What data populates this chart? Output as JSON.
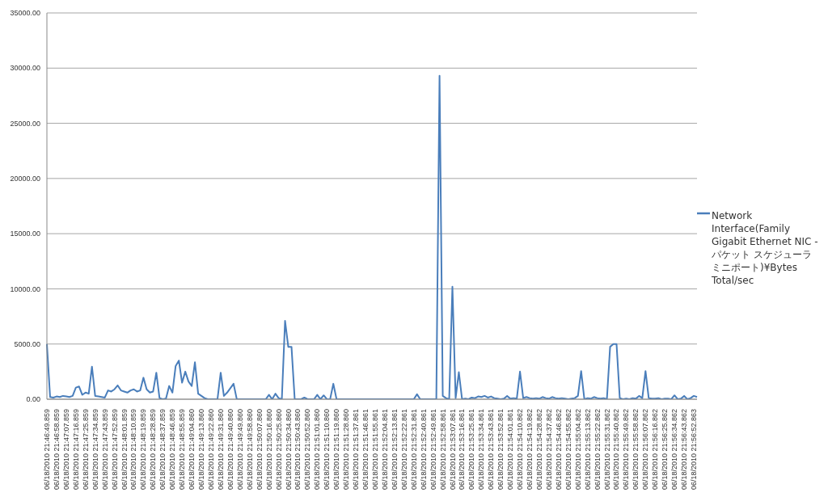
{
  "chart_data": {
    "type": "line",
    "categories": [
      "06/18/2010 21:46:49.859",
      null,
      null,
      "06/18/2010 21:46:58.859",
      null,
      null,
      "06/18/2010 21:47:07.859",
      null,
      null,
      "06/18/2010 21:47:16.859",
      null,
      null,
      "06/18/2010 21:47:25.859",
      null,
      null,
      "06/18/2010 21:47:34.859",
      null,
      null,
      "06/18/2010 21:47:43.859",
      null,
      null,
      "06/18/2010 21:47:52.859",
      null,
      null,
      "06/18/2010 21:48:01.859",
      null,
      null,
      "06/18/2010 21:48:10.859",
      null,
      null,
      "06/18/2010 21:48:19.859",
      null,
      null,
      "06/18/2010 21:48:28.859",
      null,
      null,
      "06/18/2010 21:48:37.859",
      null,
      null,
      "06/18/2010 21:48:46.859",
      null,
      null,
      "06/18/2010 21:48:55.859",
      null,
      null,
      "06/18/2010 21:49:04.860",
      null,
      null,
      "06/18/2010 21:49:13.860",
      null,
      null,
      "06/18/2010 21:49:22.860",
      null,
      null,
      "06/18/2010 21:49:31.860",
      null,
      null,
      "06/18/2010 21:49:40.860",
      null,
      null,
      "06/18/2010 21:49:49.860",
      null,
      null,
      "06/18/2010 21:49:58.860",
      null,
      null,
      "06/18/2010 21:50:07.860",
      null,
      null,
      "06/18/2010 21:50:16.860",
      null,
      null,
      "06/18/2010 21:50:25.860",
      null,
      null,
      "06/18/2010 21:50:34.860",
      null,
      null,
      "06/18/2010 21:50:43.860",
      null,
      null,
      "06/18/2010 21:50:52.860",
      null,
      null,
      "06/18/2010 21:51:01.860",
      null,
      null,
      "06/18/2010 21:51:10.860",
      null,
      null,
      "06/18/2010 21:51:19.860",
      null,
      null,
      "06/18/2010 21:51:28.860",
      null,
      null,
      "06/18/2010 21:51:37.861",
      null,
      null,
      "06/18/2010 21:51:46.861",
      null,
      null,
      "06/18/2010 21:51:55.861",
      null,
      null,
      "06/18/2010 21:52:04.861",
      null,
      null,
      "06/18/2010 21:52:13.861",
      null,
      null,
      "06/18/2010 21:52:22.861",
      null,
      null,
      "06/18/2010 21:52:31.861",
      null,
      null,
      "06/18/2010 21:52:40.861",
      null,
      null,
      "06/18/2010 21:52:49.861",
      null,
      null,
      "06/18/2010 21:52:58.861",
      null,
      null,
      "06/18/2010 21:53:07.861",
      null,
      null,
      "06/18/2010 21:53:16.861",
      null,
      null,
      "06/18/2010 21:53:25.861",
      null,
      null,
      "06/18/2010 21:53:34.861",
      null,
      null,
      "06/18/2010 21:53:43.861",
      null,
      null,
      "06/18/2010 21:53:52.861",
      null,
      null,
      "06/18/2010 21:54:01.861",
      null,
      null,
      "06/18/2010 21:54:10.862",
      null,
      null,
      "06/18/2010 21:54:19.862",
      null,
      null,
      "06/18/2010 21:54:28.862",
      null,
      null,
      "06/18/2010 21:54:37.862",
      null,
      null,
      "06/18/2010 21:54:46.862",
      null,
      null,
      "06/18/2010 21:54:55.862",
      null,
      null,
      "06/18/2010 21:55:04.862",
      null,
      null,
      "06/18/2010 21:55:13.862",
      null,
      null,
      "06/18/2010 21:55:22.862",
      null,
      null,
      "06/18/2010 21:55:31.862",
      null,
      null,
      "06/18/2010 21:55:40.862",
      null,
      null,
      "06/18/2010 21:55:49.862",
      null,
      null,
      "06/18/2010 21:55:58.862",
      null,
      null,
      "06/18/2010 21:56:07.862",
      null,
      null,
      "06/18/2010 21:56:16.862",
      null,
      null,
      "06/18/2010 21:56:25.862",
      null,
      null,
      "06/18/2010 21:56:34.862",
      null,
      null,
      "06/18/2010 21:56:43.862",
      null,
      null,
      "06/18/2010 21:56:52.863",
      null
    ],
    "series": [
      {
        "name": "Network Interface(Family Gigabit Ethernet NIC - パケット スケジューラミニポート)¥Bytes Total/sec",
        "color": "#4a7ebb",
        "values": [
          5000,
          200,
          150,
          250,
          200,
          300,
          250,
          200,
          300,
          1050,
          1150,
          400,
          600,
          500,
          2950,
          300,
          250,
          200,
          150,
          800,
          700,
          900,
          1250,
          800,
          700,
          600,
          800,
          900,
          700,
          800,
          1950,
          900,
          600,
          700,
          2400,
          100,
          0,
          50,
          1200,
          600,
          3000,
          3500,
          1500,
          2500,
          1600,
          1200,
          3350,
          500,
          300,
          100,
          0,
          0,
          0,
          0,
          2400,
          300,
          600,
          1000,
          1400,
          0,
          0,
          0,
          0,
          0,
          0,
          0,
          0,
          0,
          0,
          400,
          0,
          500,
          100,
          0,
          7100,
          4750,
          4750,
          0,
          0,
          0,
          150,
          0,
          0,
          0,
          400,
          0,
          350,
          0,
          0,
          1400,
          0,
          0,
          0,
          0,
          0,
          0,
          0,
          0,
          0,
          0,
          0,
          0,
          0,
          0,
          0,
          0,
          0,
          0,
          0,
          0,
          0,
          0,
          0,
          0,
          0,
          450,
          0,
          0,
          0,
          0,
          0,
          0,
          29300,
          300,
          100,
          0,
          10200,
          100,
          2450,
          0,
          50,
          0,
          150,
          100,
          250,
          200,
          300,
          150,
          250,
          100,
          50,
          0,
          50,
          300,
          50,
          100,
          50,
          2500,
          100,
          200,
          100,
          50,
          100,
          50,
          200,
          100,
          50,
          200,
          100,
          50,
          100,
          50,
          0,
          50,
          100,
          300,
          2550,
          0,
          100,
          50,
          200,
          100,
          50,
          100,
          0,
          4750,
          5000,
          5000,
          100,
          0,
          50,
          0,
          100,
          50,
          300,
          100,
          2550,
          100,
          50,
          50,
          100,
          0,
          50,
          50,
          0,
          350,
          0,
          50,
          300,
          0,
          100,
          300,
          200
        ]
      }
    ],
    "ylim": [
      0,
      35000
    ],
    "yticks": [
      {
        "value": 0,
        "label": "0.00"
      },
      {
        "value": 5000,
        "label": "5000.00"
      },
      {
        "value": 10000,
        "label": "10000.00"
      },
      {
        "value": 15000,
        "label": "15000.00"
      },
      {
        "value": 20000,
        "label": "20000.00"
      },
      {
        "value": 25000,
        "label": "25000.00"
      },
      {
        "value": 30000,
        "label": "30000.00"
      },
      {
        "value": 35000,
        "label": "35000.00"
      }
    ],
    "grid": "y",
    "legend": "right",
    "marker": "none",
    "line_style": "solid"
  }
}
